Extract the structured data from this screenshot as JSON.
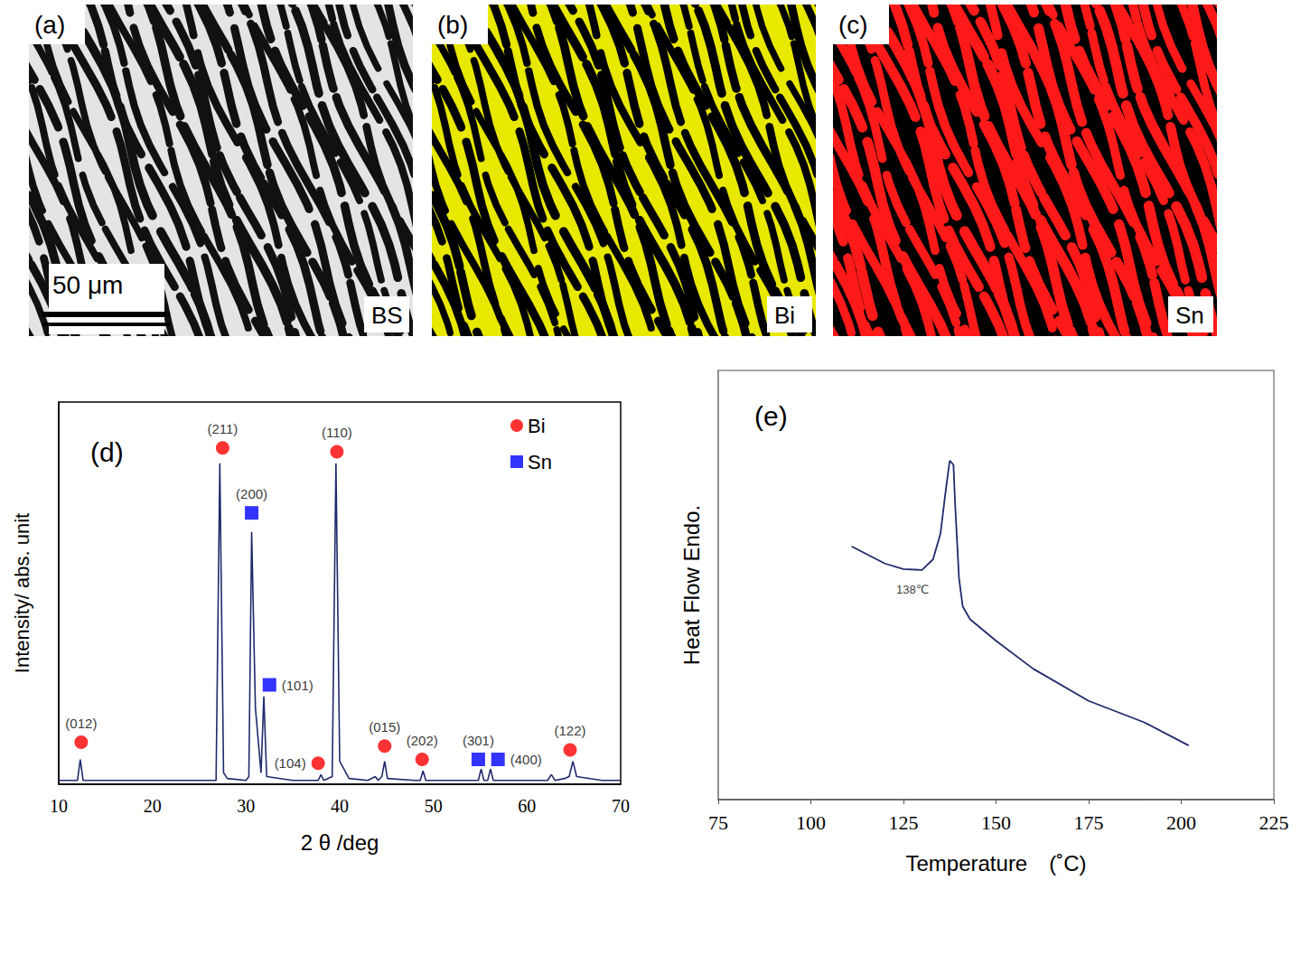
{
  "images": [
    {
      "label": "(a)",
      "tag": "BS",
      "scale_bar": "50 μm"
    },
    {
      "label": "(b)",
      "tag": "Bi"
    },
    {
      "label": "(c)",
      "tag": "Sn"
    }
  ],
  "chart_data": [
    {
      "type": "line",
      "title": "(d)",
      "xlabel": "2 θ /deg",
      "ylabel": "Intensity/ abs. unit",
      "xlim": [
        10,
        70
      ],
      "xticks": [
        10,
        20,
        30,
        40,
        50,
        60,
        70
      ],
      "ylim": [
        0,
        100
      ],
      "tick_labels": "x",
      "legend": "upper right",
      "series": [
        {
          "type": "line",
          "color": "#1f2a6b",
          "x": [
            10,
            12,
            12.3,
            12.6,
            15,
            20,
            25,
            26.8,
            27.2,
            27.6,
            28,
            30,
            30.3,
            30.6,
            31,
            31.6,
            31.9,
            32.2,
            35,
            37.7,
            38,
            38.3,
            39.2,
            39.6,
            40,
            41,
            43,
            43.8,
            44.1,
            44.5,
            44.8,
            45.1,
            48,
            48.6,
            48.9,
            49.2,
            54,
            54.8,
            55.1,
            55.4,
            55.8,
            56.1,
            56.4,
            60,
            62.2,
            62.6,
            63,
            64,
            64.5,
            64.9,
            65.3,
            68,
            70
          ],
          "values": [
            1,
            1,
            6.5,
            1,
            1,
            1,
            1,
            1,
            84,
            3,
            1.5,
            1,
            2,
            66,
            20,
            3,
            23,
            2,
            1,
            1,
            2.5,
            1,
            2,
            84,
            6,
            1.5,
            1,
            2,
            1,
            2,
            6,
            1.5,
            1,
            1,
            3.5,
            1,
            1,
            1,
            4,
            1,
            1,
            4,
            1,
            1,
            1,
            2.5,
            1,
            1.5,
            2,
            6,
            2,
            1,
            1
          ]
        },
        {
          "name": "Bi",
          "type": "scatter",
          "marker": "circle",
          "color": "#ff0000",
          "x": [
            12.4,
            27.5,
            37.7,
            39.7,
            44.8,
            48.8,
            64.6
          ],
          "values": [
            11,
            88,
            5.5,
            87,
            10,
            6.5,
            9
          ],
          "labels": [
            "(012)",
            "(211)",
            "(104)",
            "(110)",
            "(015)",
            "(202)",
            "(122)"
          ]
        },
        {
          "name": "Sn",
          "type": "scatter",
          "marker": "square",
          "color": "#0000ff",
          "x": [
            30.6,
            32.5,
            54.8,
            56.9
          ],
          "values": [
            71,
            26,
            6.5,
            6.5
          ],
          "labels": [
            "(200)",
            "(101)",
            "(301)",
            "(400)"
          ]
        }
      ]
    },
    {
      "type": "line",
      "title": "(e)",
      "xlabel": "Temperature　(˚C)",
      "ylabel": "Heat Flow Endo.",
      "xlim": [
        75,
        225
      ],
      "xticks": [
        75,
        100,
        125,
        150,
        175,
        200,
        225
      ],
      "ylim": [
        0,
        100
      ],
      "tick_labels": "x",
      "color": "#1f2a6b",
      "x": [
        111,
        120,
        125,
        130,
        133,
        135,
        136.5,
        137.5,
        138.5,
        139,
        140,
        141,
        143,
        150,
        160,
        175,
        190,
        202
      ],
      "values": [
        59,
        55,
        53.7,
        53.5,
        56,
        62,
        72.6,
        79,
        78,
        68,
        51.6,
        45,
        42,
        37,
        30.5,
        23,
        18,
        12.6
      ],
      "annotations": [
        {
          "text": "138℃",
          "x": 127.5,
          "y": 49
        }
      ]
    }
  ]
}
